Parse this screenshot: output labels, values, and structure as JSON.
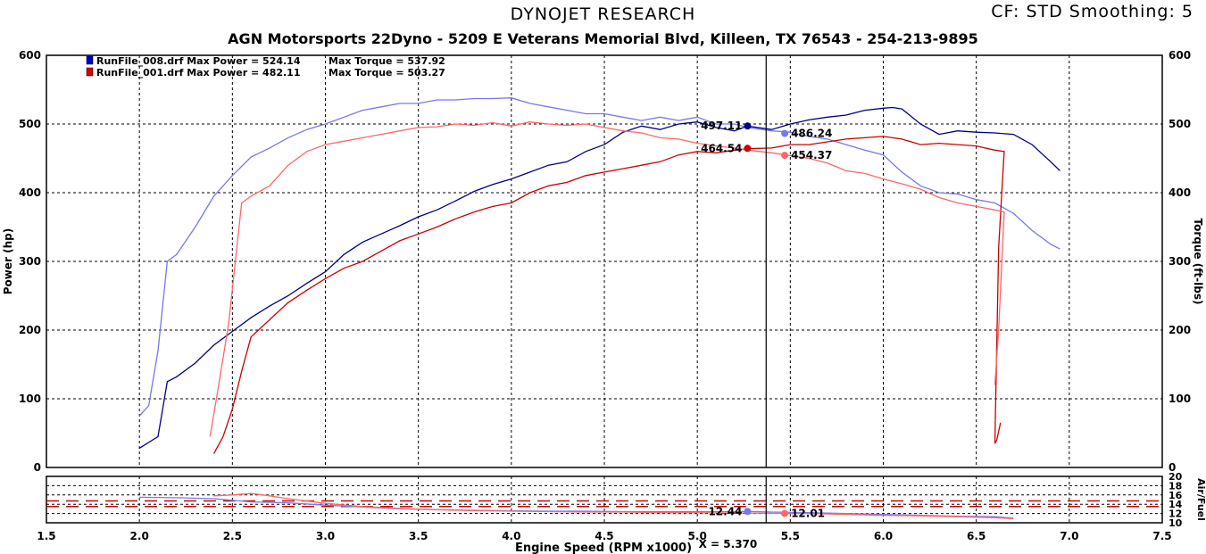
{
  "header": {
    "brand": "DYNOJET RESEARCH",
    "correction_info": "CF: STD  Smoothing: 5",
    "subtitle": "AGN Motorsports 22Dyno - 5209 E Veterans Memorial Blvd, Killeen, TX 76543 - 254-213-9895"
  },
  "legend": [
    {
      "file": "RunFile_008.drf",
      "power_label": "Max Power = 524.14",
      "torque_label": "Max Torque = 537.92",
      "color": "#0000cc"
    },
    {
      "file": "RunFile_001.drf",
      "power_label": "Max Power = 482.11",
      "torque_label": "Max Torque = 503.27",
      "color": "#dd0000"
    }
  ],
  "cursor": {
    "label": "X = 5.370",
    "x": 5.37
  },
  "colors": {
    "run008_power": "#000088",
    "run008_torque": "#7777ee",
    "run001_power": "#cc0000",
    "run001_torque": "#ff6666",
    "grid": "#000000",
    "afr_dash": "#cc0000"
  },
  "chart_data": [
    {
      "type": "line",
      "title": "DYNOJET RESEARCH",
      "xlabel": "Engine Speed (RPM x1000)",
      "ylabel": "Power (hp)",
      "y2label": "Torque (ft-lbs)",
      "xlim": [
        1.5,
        7.5
      ],
      "ylim": [
        0,
        600
      ],
      "y2lim": [
        0,
        600
      ],
      "xticks": [
        "1.5",
        "2.0",
        "2.5",
        "3.0",
        "3.5",
        "4.0",
        "4.5",
        "5.0",
        "5.5",
        "6.0",
        "6.5",
        "7.0",
        "7.5"
      ],
      "yticks": [
        "0",
        "100",
        "200",
        "300",
        "400",
        "500",
        "600"
      ],
      "y2ticks": [
        "0",
        "100",
        "200",
        "300",
        "400",
        "500",
        "600"
      ],
      "grid": true,
      "legend_position": "top-left",
      "series": [
        {
          "name": "RunFile_008.drf Max Power = 524.14",
          "axis": "left",
          "color": "#000088",
          "x": [
            2.0,
            2.1,
            2.15,
            2.2,
            2.3,
            2.4,
            2.5,
            2.6,
            2.7,
            2.8,
            2.9,
            3.0,
            3.1,
            3.2,
            3.3,
            3.4,
            3.5,
            3.6,
            3.7,
            3.8,
            3.9,
            4.0,
            4.1,
            4.2,
            4.3,
            4.4,
            4.5,
            4.6,
            4.7,
            4.8,
            4.9,
            5.0,
            5.1,
            5.2,
            5.27,
            5.4,
            5.5,
            5.6,
            5.7,
            5.8,
            5.9,
            6.0,
            6.05,
            6.1,
            6.2,
            6.3,
            6.4,
            6.5,
            6.6,
            6.7,
            6.8,
            6.9,
            6.95
          ],
          "y": [
            28,
            45,
            125,
            132,
            152,
            178,
            198,
            218,
            235,
            250,
            268,
            285,
            310,
            328,
            340,
            352,
            365,
            375,
            388,
            402,
            412,
            420,
            430,
            440,
            445,
            460,
            470,
            488,
            497,
            492,
            500,
            503,
            495,
            490,
            497,
            492,
            500,
            506,
            510,
            513,
            520,
            523,
            524,
            522,
            500,
            485,
            490,
            488,
            487,
            485,
            470,
            445,
            432
          ]
        },
        {
          "name": "RunFile_008.drf Max Torque = 537.92",
          "axis": "right",
          "color": "#7777ee",
          "x": [
            2.0,
            2.05,
            2.1,
            2.15,
            2.2,
            2.3,
            2.4,
            2.5,
            2.6,
            2.7,
            2.8,
            2.9,
            3.0,
            3.1,
            3.2,
            3.3,
            3.4,
            3.5,
            3.6,
            3.7,
            3.8,
            3.9,
            4.0,
            4.1,
            4.2,
            4.3,
            4.4,
            4.5,
            4.6,
            4.7,
            4.8,
            4.9,
            5.0,
            5.1,
            5.2,
            5.27,
            5.4,
            5.5,
            5.6,
            5.7,
            5.8,
            5.9,
            6.0,
            6.1,
            6.2,
            6.3,
            6.4,
            6.5,
            6.6,
            6.7,
            6.8,
            6.9,
            6.95
          ],
          "y": [
            75,
            90,
            170,
            300,
            310,
            350,
            395,
            425,
            452,
            465,
            480,
            492,
            500,
            510,
            520,
            525,
            530,
            530,
            535,
            535,
            537,
            537,
            538,
            530,
            525,
            520,
            515,
            515,
            510,
            505,
            510,
            505,
            510,
            500,
            500,
            495,
            490,
            488,
            482,
            478,
            470,
            462,
            455,
            430,
            410,
            400,
            398,
            390,
            385,
            370,
            345,
            325,
            318
          ]
        },
        {
          "name": "RunFile_001.drf Max Power = 482.11",
          "axis": "left",
          "color": "#cc0000",
          "x": [
            2.4,
            2.45,
            2.5,
            2.55,
            2.6,
            2.7,
            2.8,
            2.9,
            3.0,
            3.1,
            3.2,
            3.3,
            3.4,
            3.5,
            3.6,
            3.7,
            3.8,
            3.9,
            4.0,
            4.1,
            4.2,
            4.3,
            4.4,
            4.5,
            4.6,
            4.7,
            4.8,
            4.9,
            5.0,
            5.1,
            5.2,
            5.27,
            5.4,
            5.5,
            5.6,
            5.7,
            5.8,
            5.9,
            6.0,
            6.1,
            6.2,
            6.3,
            6.4,
            6.5,
            6.6,
            6.65,
            6.62,
            6.6,
            6.61,
            6.63
          ],
          "y": [
            20,
            45,
            85,
            140,
            190,
            215,
            240,
            258,
            275,
            290,
            300,
            315,
            330,
            340,
            350,
            362,
            372,
            380,
            385,
            400,
            410,
            415,
            425,
            430,
            435,
            440,
            445,
            455,
            460,
            458,
            462,
            464,
            465,
            470,
            470,
            474,
            478,
            480,
            482,
            478,
            470,
            472,
            470,
            468,
            462,
            460,
            320,
            35,
            40,
            65
          ]
        },
        {
          "name": "RunFile_001.drf Max Torque = 503.27",
          "axis": "right",
          "color": "#ff6666",
          "x": [
            2.38,
            2.42,
            2.48,
            2.55,
            2.6,
            2.7,
            2.8,
            2.9,
            3.0,
            3.1,
            3.2,
            3.3,
            3.4,
            3.5,
            3.6,
            3.7,
            3.8,
            3.9,
            4.0,
            4.1,
            4.2,
            4.3,
            4.4,
            4.5,
            4.6,
            4.7,
            4.8,
            4.9,
            5.0,
            5.1,
            5.2,
            5.27,
            5.4,
            5.5,
            5.6,
            5.7,
            5.8,
            5.9,
            6.0,
            6.1,
            6.2,
            6.3,
            6.4,
            6.5,
            6.6,
            6.65,
            6.62,
            6.6
          ],
          "y": [
            45,
            110,
            210,
            385,
            395,
            410,
            440,
            460,
            470,
            475,
            480,
            485,
            490,
            495,
            496,
            500,
            498,
            502,
            497,
            503,
            500,
            498,
            500,
            495,
            490,
            487,
            480,
            478,
            472,
            468,
            465,
            462,
            458,
            454,
            450,
            443,
            432,
            428,
            420,
            413,
            405,
            393,
            385,
            380,
            375,
            372,
            200,
            120
          ]
        }
      ],
      "point_labels": [
        {
          "text": "497.11",
          "x": 5.27,
          "y": 497.11,
          "series": 0
        },
        {
          "text": "486.24",
          "x": 5.47,
          "y": 486.24,
          "series": 1
        },
        {
          "text": "464.54",
          "x": 5.27,
          "y": 464.54,
          "series": 2
        },
        {
          "text": "454.37",
          "x": 5.47,
          "y": 454.37,
          "series": 3
        }
      ]
    },
    {
      "type": "line",
      "title": "",
      "xlabel": "Engine Speed (RPM x1000)",
      "ylabel": "Air/Fuel",
      "xlim": [
        1.5,
        7.5
      ],
      "ylim": [
        10,
        20
      ],
      "yticks": [
        "10",
        "12",
        "14",
        "16",
        "18",
        "20"
      ],
      "grid": true,
      "reference_lines": [
        14.7,
        13.5
      ],
      "series": [
        {
          "name": "RunFile_008.drf",
          "color": "#7777ee",
          "x": [
            2.0,
            2.2,
            2.4,
            2.6,
            2.8,
            3.0,
            3.2,
            3.4,
            3.6,
            3.8,
            4.0,
            4.2,
            4.4,
            4.6,
            4.8,
            5.0,
            5.2,
            5.27,
            5.4,
            5.6,
            5.8,
            6.0,
            6.2,
            6.4,
            6.6,
            6.7
          ],
          "y": [
            15.5,
            15.4,
            15.2,
            14.5,
            14.3,
            13.8,
            13.4,
            13.0,
            12.8,
            12.7,
            12.6,
            12.5,
            12.5,
            12.4,
            12.4,
            12.4,
            12.4,
            12.44,
            12.3,
            12.2,
            12.0,
            11.8,
            11.6,
            11.4,
            11.3,
            11.0
          ]
        },
        {
          "name": "RunFile_001.drf",
          "color": "#ff6666",
          "x": [
            2.4,
            2.5,
            2.6,
            2.7,
            2.8,
            3.0,
            3.2,
            3.4,
            3.6,
            3.8,
            4.0,
            4.2,
            4.4,
            4.6,
            4.8,
            5.0,
            5.2,
            5.27,
            5.47,
            5.6,
            5.8,
            6.0,
            6.2,
            6.4,
            6.6,
            6.7
          ],
          "y": [
            15.8,
            16.0,
            16.3,
            15.8,
            15.2,
            14.2,
            13.5,
            13.1,
            12.8,
            12.6,
            12.5,
            12.4,
            12.3,
            12.3,
            12.2,
            12.2,
            12.1,
            12.1,
            12.01,
            12.0,
            11.8,
            11.6,
            11.5,
            11.3,
            11.1,
            10.9
          ]
        }
      ],
      "point_labels": [
        {
          "text": "12.44",
          "x": 5.27,
          "y": 12.44,
          "series": 0
        },
        {
          "text": "12.01",
          "x": 5.47,
          "y": 12.01,
          "series": 1
        }
      ]
    }
  ]
}
